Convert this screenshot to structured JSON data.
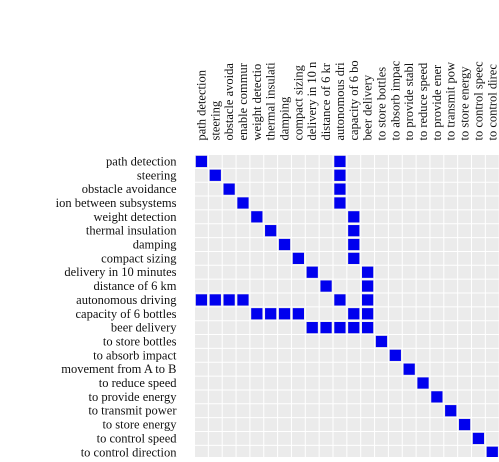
{
  "chart_data": {
    "type": "heatmap",
    "title": "",
    "xlabel": "",
    "ylabel": "",
    "col_labels": [
      "path detection",
      "steering",
      "obstacle avoida",
      "enable commur",
      "weight detectio",
      "thermal insulati",
      "damping",
      "compact sizing",
      "delivery in 10 n",
      "distance of 6 kr",
      "autonomous dri",
      "capacity of 6 bo",
      "beer delivery",
      "to store bottles",
      "to absorb impac",
      "to provide stabl",
      "to reduce speed",
      "to provide ener",
      "to transmit pow",
      "to store energy",
      "to control speec",
      "to control direc"
    ],
    "row_labels": [
      "path detection",
      "steering",
      "obstacle avoidance",
      "ion between subsystems",
      "weight detection",
      "thermal insulation",
      "damping",
      "compact sizing",
      "delivery in 10 minutes",
      "distance of 6 km",
      "autonomous driving",
      "capacity of 6 bottles",
      "beer delivery",
      "to store bottles",
      "to absorb impact",
      "movement from A to B",
      "to reduce speed",
      "to provide energy",
      "to transmit power",
      "to store energy",
      "to control speed",
      "to control direction"
    ],
    "cells": [
      [
        0,
        0
      ],
      [
        0,
        10
      ],
      [
        1,
        1
      ],
      [
        1,
        10
      ],
      [
        2,
        2
      ],
      [
        2,
        10
      ],
      [
        3,
        3
      ],
      [
        3,
        10
      ],
      [
        4,
        4
      ],
      [
        4,
        11
      ],
      [
        5,
        5
      ],
      [
        5,
        11
      ],
      [
        6,
        6
      ],
      [
        6,
        11
      ],
      [
        7,
        7
      ],
      [
        7,
        11
      ],
      [
        8,
        8
      ],
      [
        8,
        12
      ],
      [
        9,
        9
      ],
      [
        9,
        12
      ],
      [
        10,
        0
      ],
      [
        10,
        1
      ],
      [
        10,
        2
      ],
      [
        10,
        3
      ],
      [
        10,
        10
      ],
      [
        10,
        12
      ],
      [
        11,
        4
      ],
      [
        11,
        5
      ],
      [
        11,
        6
      ],
      [
        11,
        7
      ],
      [
        11,
        11
      ],
      [
        11,
        12
      ],
      [
        12,
        8
      ],
      [
        12,
        9
      ],
      [
        12,
        10
      ],
      [
        12,
        11
      ],
      [
        12,
        12
      ],
      [
        13,
        13
      ],
      [
        14,
        14
      ],
      [
        15,
        15
      ],
      [
        16,
        16
      ],
      [
        17,
        17
      ],
      [
        18,
        18
      ],
      [
        19,
        19
      ],
      [
        20,
        20
      ],
      [
        21,
        21
      ]
    ],
    "colors": {
      "filled": "#0000ee",
      "background": "#ebebeb",
      "grid": "#ffffff"
    }
  }
}
